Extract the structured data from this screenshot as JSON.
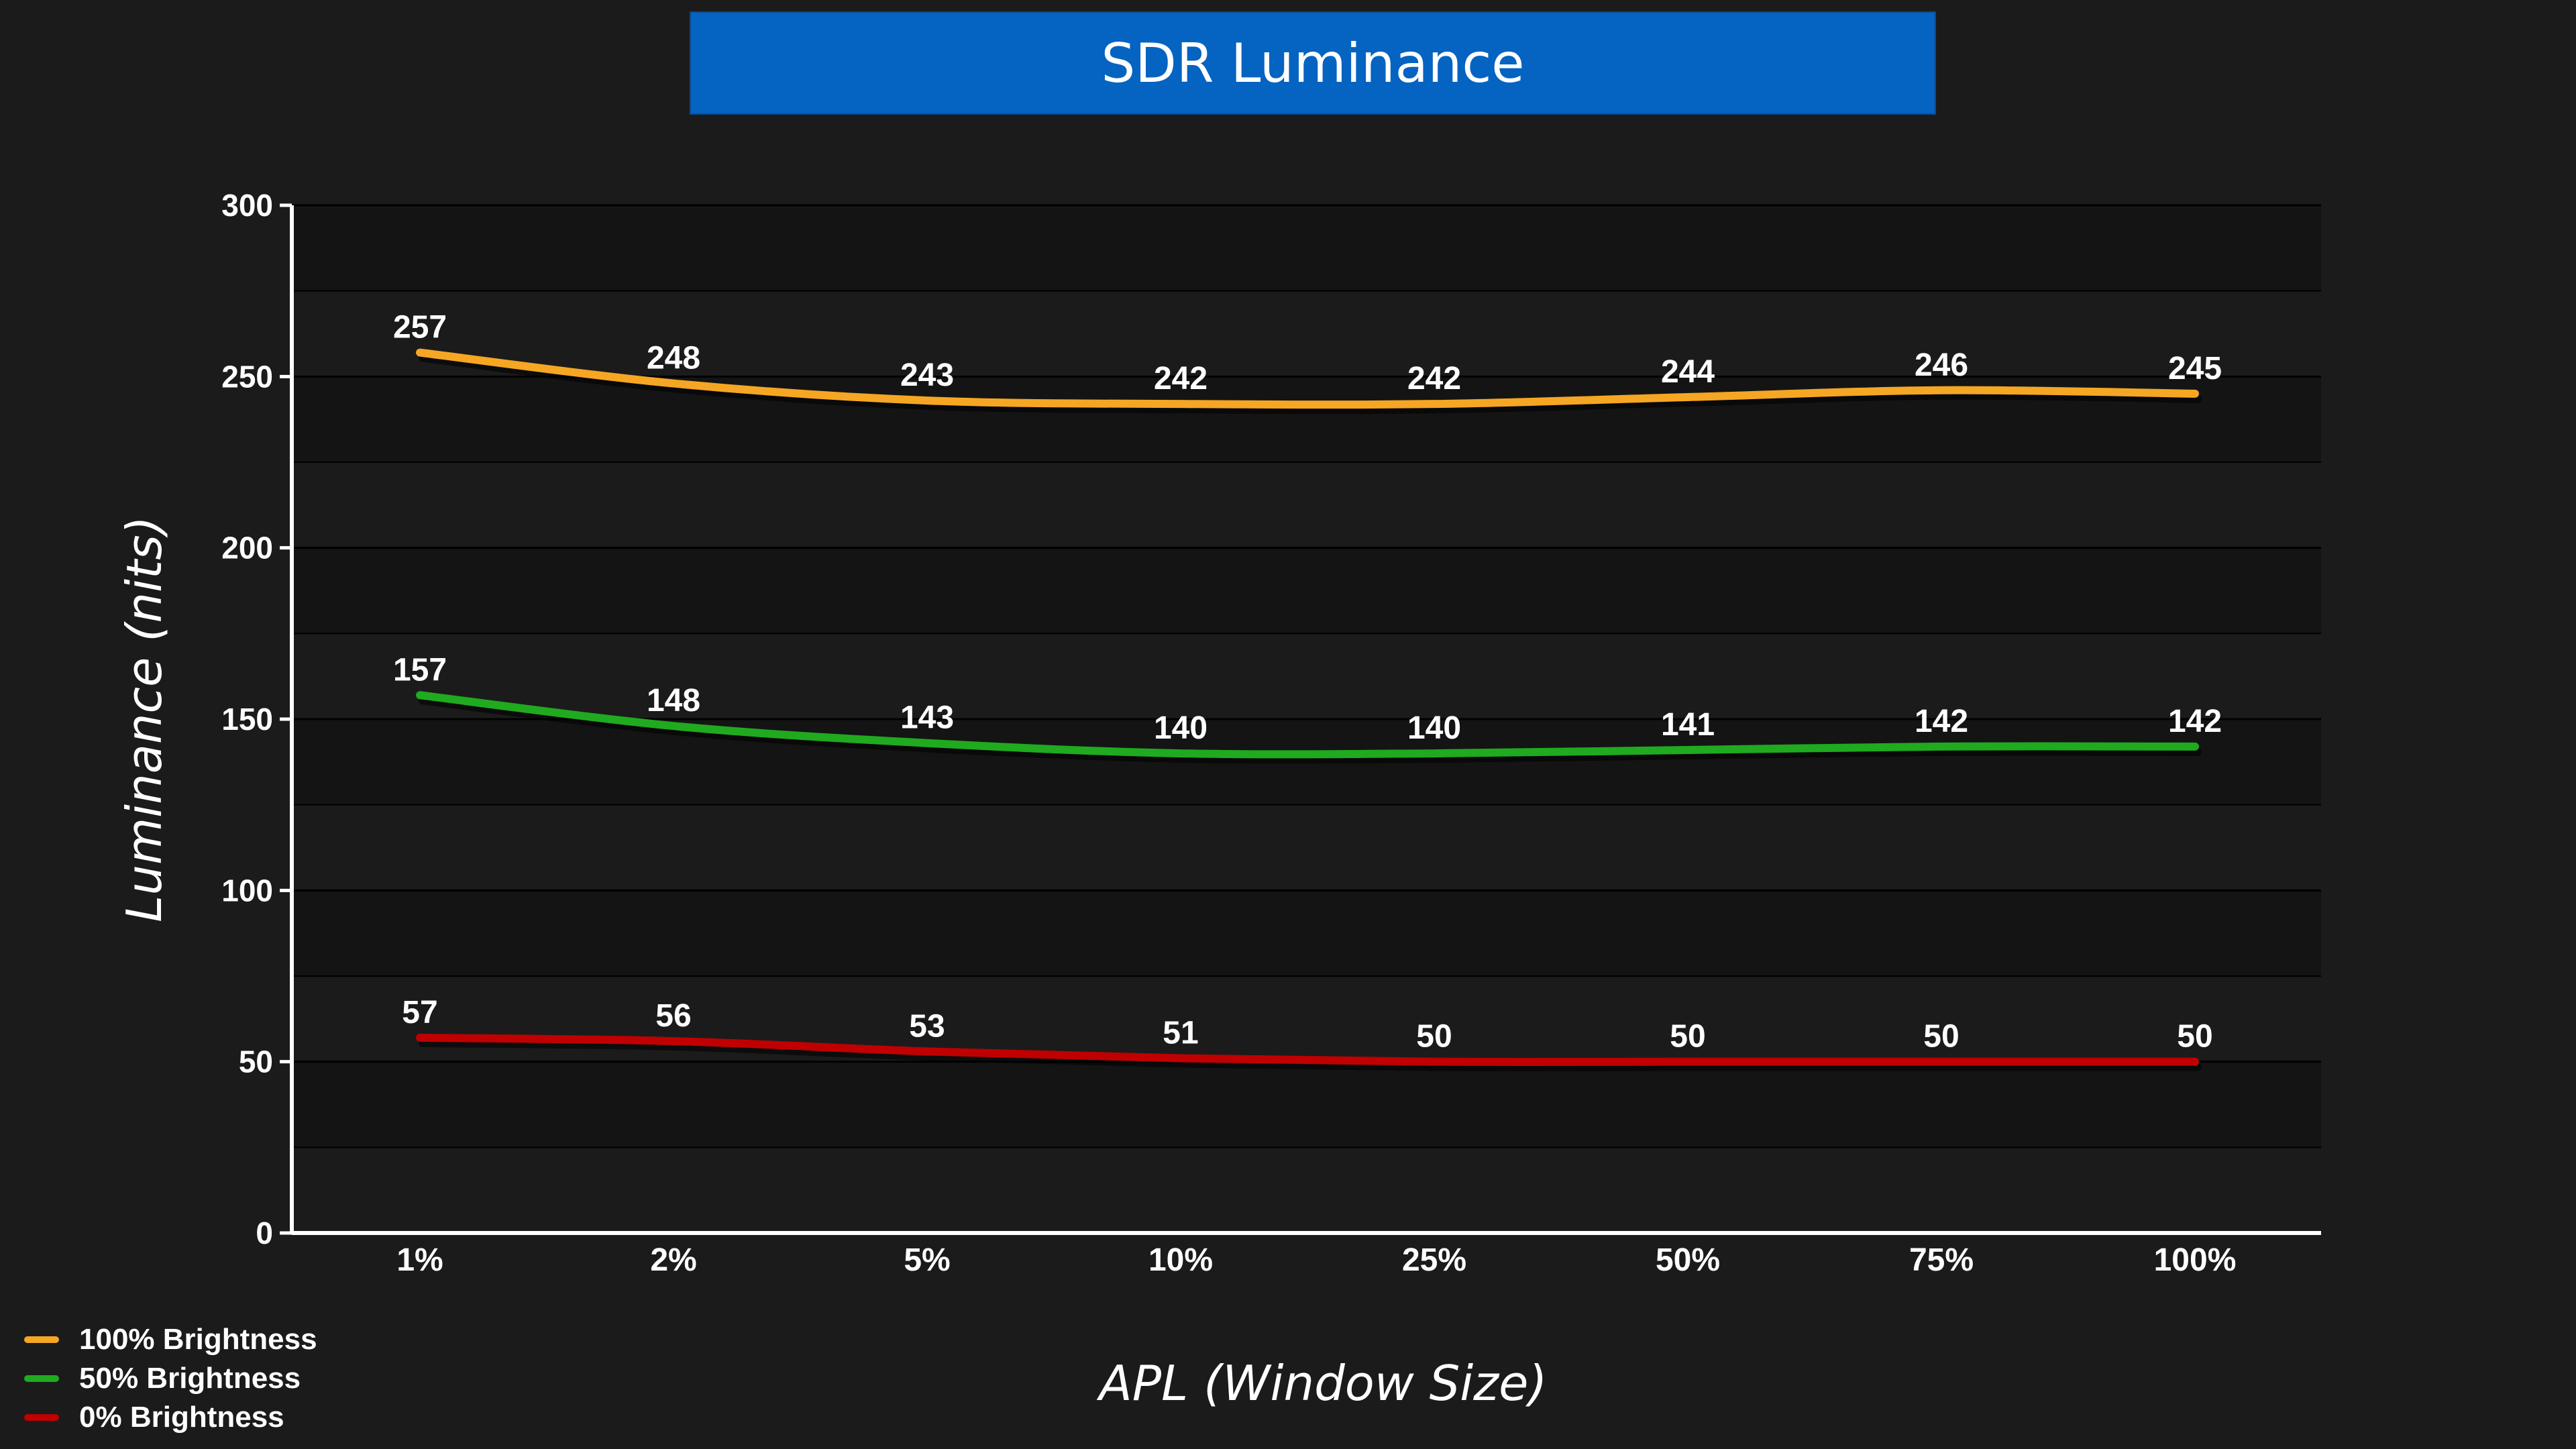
{
  "chart_data": {
    "type": "line",
    "title": "SDR Luminance",
    "xlabel": "APL (Window Size)",
    "ylabel": "Luminance (nits)",
    "categories": [
      "1%",
      "2%",
      "5%",
      "10%",
      "25%",
      "50%",
      "75%",
      "100%"
    ],
    "ylim": [
      0,
      300
    ],
    "yticks": [
      0,
      50,
      100,
      150,
      200,
      250,
      300
    ],
    "grid": true,
    "legend_position": "bottom-left",
    "series": [
      {
        "name": "100% Brightness",
        "color": "#f5a623",
        "values": [
          257,
          248,
          243,
          242,
          242,
          244,
          246,
          245
        ]
      },
      {
        "name": "50% Brightness",
        "color": "#1faa1f",
        "values": [
          157,
          148,
          143,
          140,
          140,
          141,
          142,
          142
        ]
      },
      {
        "name": "0% Brightness",
        "color": "#c00000",
        "values": [
          57,
          56,
          53,
          51,
          50,
          50,
          50,
          50
        ]
      }
    ]
  }
}
